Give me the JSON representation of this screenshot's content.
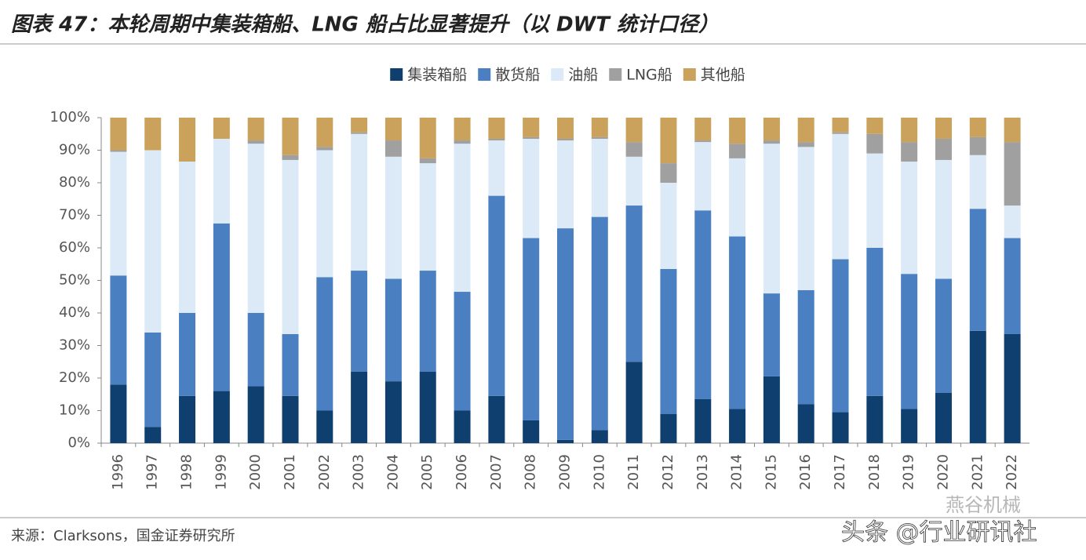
{
  "chart_data": {
    "type": "bar",
    "stacked": true,
    "title": "图表 47：本轮周期中集装箱船、LNG 船占比显著提升（以 DWT 统计口径）",
    "categories": [
      "1996",
      "1997",
      "1998",
      "1999",
      "2000",
      "2001",
      "2002",
      "2003",
      "2004",
      "2005",
      "2006",
      "2007",
      "2008",
      "2009",
      "2010",
      "2011",
      "2012",
      "2013",
      "2014",
      "2015",
      "2016",
      "2017",
      "2018",
      "2019",
      "2020",
      "2021",
      "2022"
    ],
    "series": [
      {
        "name": "集装箱船",
        "color": "#0f3f6e",
        "values": [
          18,
          5,
          14.5,
          16,
          17.5,
          14.5,
          10,
          22,
          19,
          22,
          10,
          14.5,
          7,
          1,
          4,
          25,
          9,
          13.5,
          10.5,
          20.5,
          12,
          9.5,
          14.5,
          10.5,
          15.5,
          34.5,
          33.5
        ]
      },
      {
        "name": "散货船",
        "color": "#4a80c2",
        "values": [
          33.5,
          29,
          25.5,
          51.5,
          22.5,
          19,
          41,
          31,
          31.5,
          31,
          36.5,
          61.5,
          56,
          65,
          65.5,
          48,
          44.5,
          58,
          53,
          25.5,
          35,
          47,
          45.5,
          41.5,
          35,
          37.5,
          29.5
        ]
      },
      {
        "name": "油船",
        "color": "#dce9f6",
        "values": [
          38,
          56,
          46.5,
          26,
          52,
          53.5,
          39,
          42,
          37.5,
          33,
          45.5,
          17,
          30.5,
          27,
          24,
          15,
          26.5,
          21,
          24,
          46,
          44,
          38.5,
          29,
          34.5,
          36.5,
          16.5,
          10
        ]
      },
      {
        "name": "LNG船",
        "color": "#a0a0a0",
        "values": [
          0.5,
          0,
          0,
          0,
          1,
          1.5,
          1,
          0.5,
          5,
          1.5,
          1,
          0.5,
          0.5,
          0.5,
          0.5,
          4.5,
          6,
          0.5,
          4.5,
          1,
          1.5,
          0.5,
          6,
          6,
          6.5,
          5.5,
          19.5
        ]
      },
      {
        "name": "其他船",
        "color": "#caa25c",
        "values": [
          10,
          10,
          13.5,
          6.5,
          7,
          11.5,
          9,
          4.5,
          7,
          12.5,
          7,
          6.5,
          6,
          6.5,
          6,
          7.5,
          14,
          7,
          8,
          7,
          7.5,
          4.5,
          5,
          7.5,
          6.5,
          6,
          7.5
        ]
      }
    ],
    "ylim": [
      0,
      100
    ],
    "yticks": [
      {
        "value": 0,
        "label": "0%"
      },
      {
        "value": 10,
        "label": "10%"
      },
      {
        "value": 20,
        "label": "20%"
      },
      {
        "value": 30,
        "label": "30%"
      },
      {
        "value": 40,
        "label": "40%"
      },
      {
        "value": 50,
        "label": "50%"
      },
      {
        "value": 60,
        "label": "60%"
      },
      {
        "value": 70,
        "label": "70%"
      },
      {
        "value": 80,
        "label": "80%"
      },
      {
        "value": 90,
        "label": "90%"
      },
      {
        "value": 100,
        "label": "100%"
      }
    ],
    "legend": "top"
  },
  "source": "来源：Clarksons，国金证券研究所",
  "watermark": [
    "燕谷机械",
    "头条 @行业研讯社"
  ]
}
